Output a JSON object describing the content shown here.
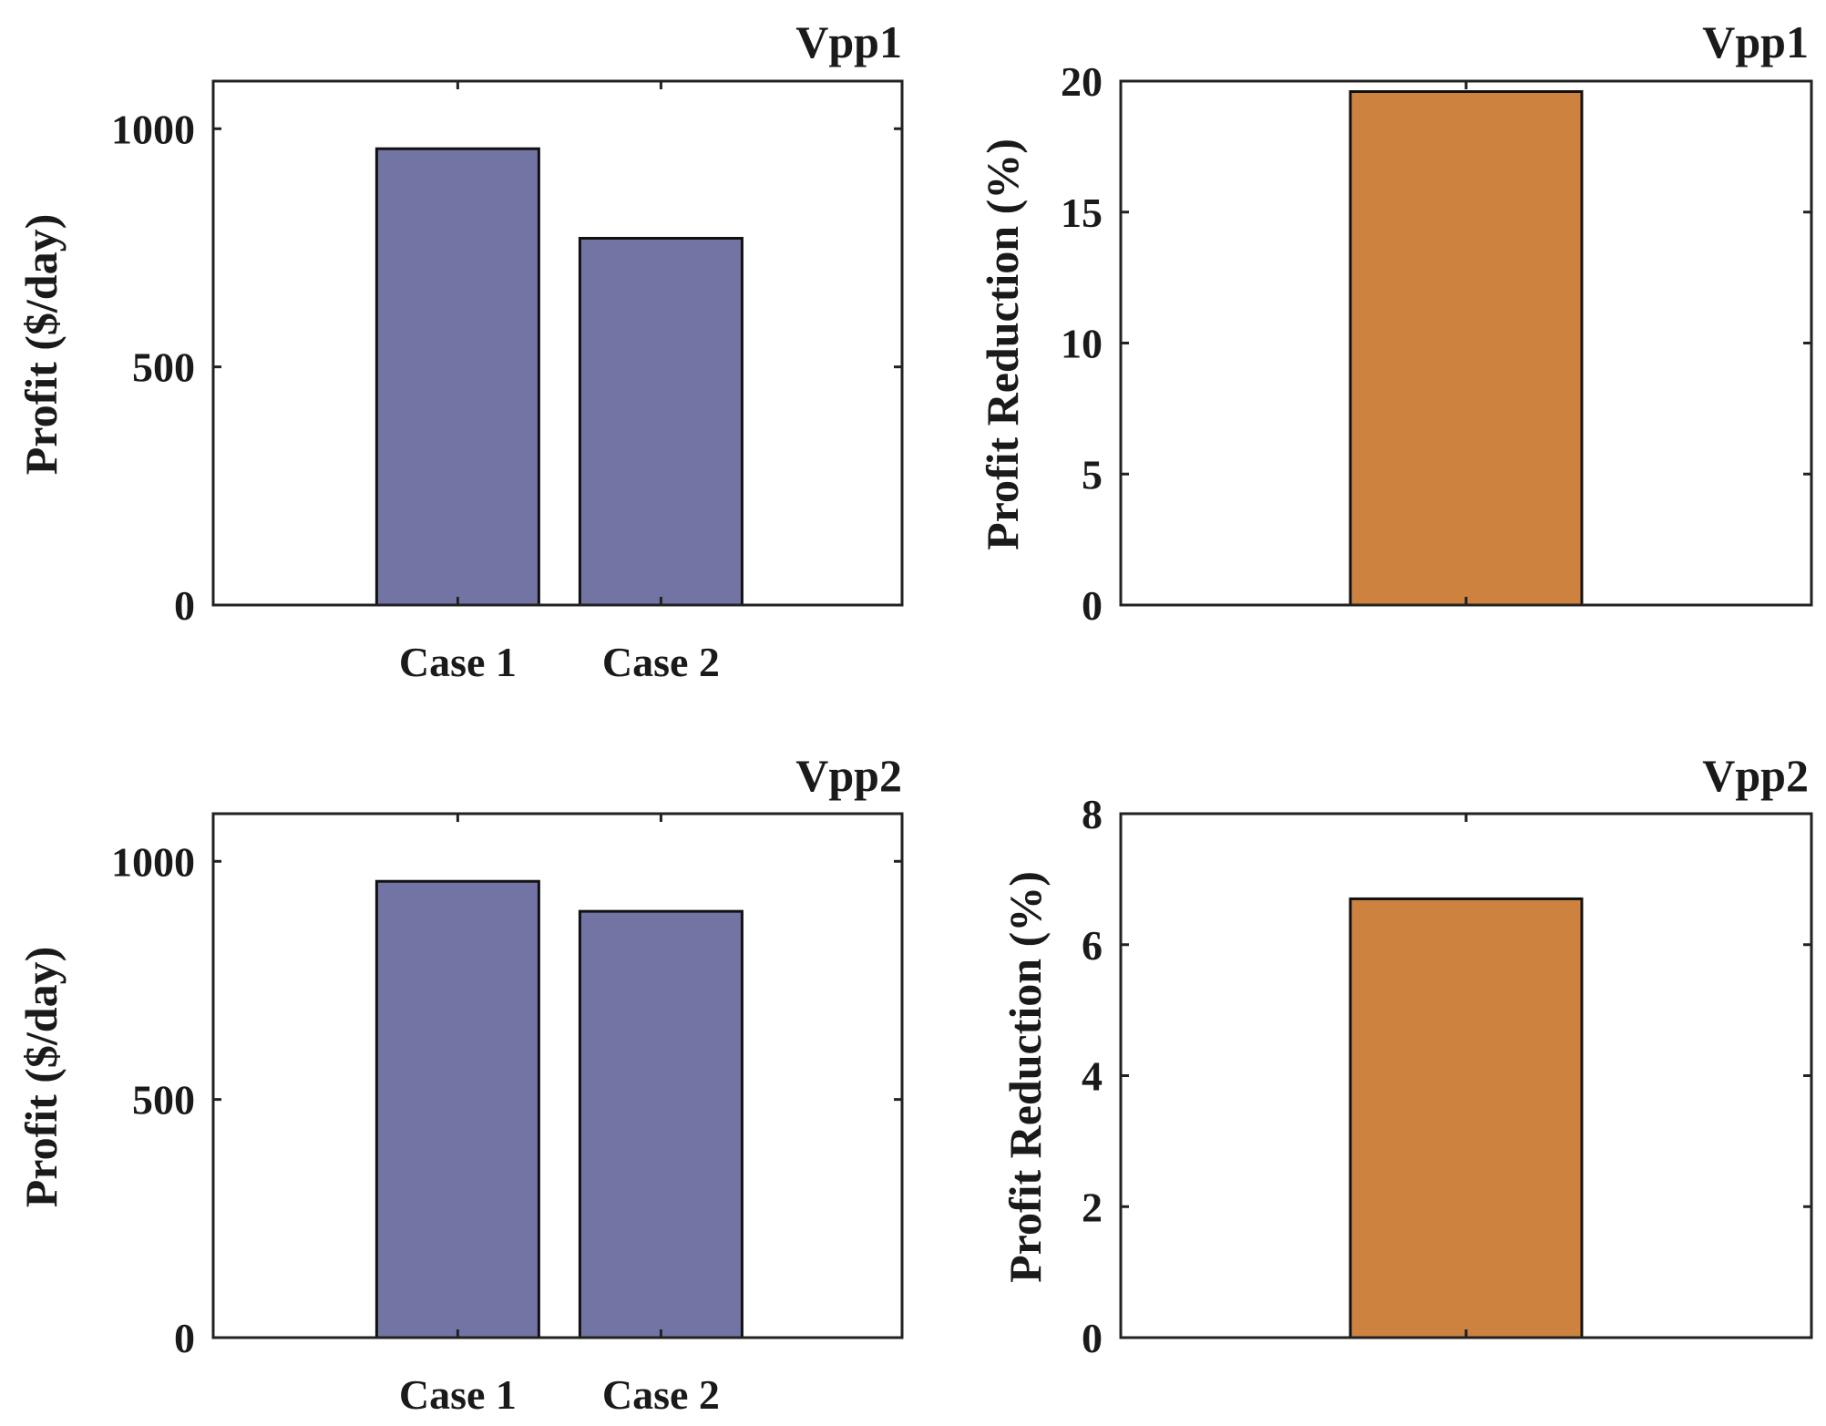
{
  "colors": {
    "profit_bar": "#7274a4",
    "reduction_bar": "#cd8240",
    "axis": "#222222",
    "text": "#1a1a1a"
  },
  "chart_data": [
    {
      "type": "bar",
      "title": "Vpp1",
      "categories": [
        "Case 1",
        "Case 2"
      ],
      "values": [
        958,
        770
      ],
      "xlabel": "",
      "ylabel": "Profit ($/day)",
      "ylim": [
        0,
        1100
      ],
      "yticks": [
        0,
        500,
        1000
      ],
      "color": "#7274a4",
      "grid": false
    },
    {
      "type": "bar",
      "title": "Vpp1",
      "categories": [
        ""
      ],
      "values": [
        19.6
      ],
      "xlabel": "",
      "ylabel": "Profit Reduction (%)",
      "ylim": [
        0,
        20
      ],
      "yticks": [
        0,
        5,
        10,
        15,
        20
      ],
      "color": "#cd8240",
      "grid": false
    },
    {
      "type": "bar",
      "title": "Vpp2",
      "categories": [
        "Case 1",
        "Case 2"
      ],
      "values": [
        958,
        895
      ],
      "xlabel": "",
      "ylabel": "Profit ($/day)",
      "ylim": [
        0,
        1100
      ],
      "yticks": [
        0,
        500,
        1000
      ],
      "color": "#7274a4",
      "grid": false
    },
    {
      "type": "bar",
      "title": "Vpp2",
      "categories": [
        ""
      ],
      "values": [
        6.7
      ],
      "xlabel": "",
      "ylabel": "Profit Reduction (%)",
      "ylim": [
        0,
        8
      ],
      "yticks": [
        0,
        2,
        4,
        6,
        8
      ],
      "color": "#cd8240",
      "grid": false
    }
  ]
}
